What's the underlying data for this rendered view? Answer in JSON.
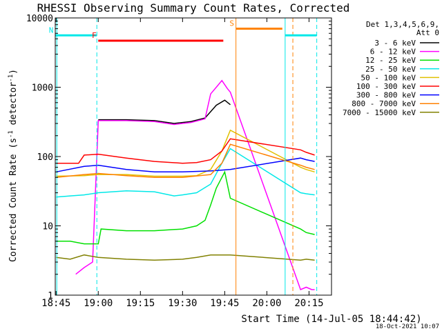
{
  "chart_data": {
    "type": "line",
    "title": "RHESSI Observing Summary Count Rates, Corrected",
    "xlabel": "Start Time (14-Jul-05 18:44:42)",
    "ylabel": "Corrected Count Rate (s⁻¹ detector⁻¹)",
    "ylabel_parts": {
      "main": "Corrected Count Rate (s",
      "sup1": "-1",
      "mid": " detector",
      "sup2": "-1",
      "end": ")"
    },
    "y_scale": "log",
    "xlim": [
      "18:44:42",
      "20:23:00"
    ],
    "ylim": [
      1,
      10000
    ],
    "x_tick_labels": [
      "18:45",
      "19:00",
      "19:15",
      "19:30",
      "19:45",
      "20:00",
      "20:15"
    ],
    "x_tick_values": [
      "18:45",
      "19:00",
      "19:15",
      "19:30",
      "19:45",
      "20:00",
      "20:15"
    ],
    "y_tick_labels": [
      "1",
      "10",
      "100",
      "1000",
      "10000"
    ],
    "y_tick_values": [
      1,
      10,
      100,
      1000,
      10000
    ],
    "legend_header": [
      "Det 1,3,4,5,6,9,",
      "Att 0"
    ],
    "legend_position": "top-right",
    "footer_date": "18-Oct-2021 10:07",
    "flags": [
      {
        "label": "N",
        "color": "#00e8e8",
        "segments": [
          [
            "18:44:42",
            "18:59:30"
          ],
          [
            "20:06:30",
            "20:17:45"
          ]
        ],
        "y": 5600
      },
      {
        "label": "F",
        "color": "#ff0000",
        "segments": [
          [
            "19:00:00",
            "19:44:30"
          ]
        ],
        "y": 4700
      },
      {
        "label": "S",
        "color": "#ff8000",
        "segments": [
          [
            "19:49:00",
            "20:05:30"
          ]
        ],
        "y": 7000
      }
    ],
    "vlines": [
      {
        "x": "18:45:15",
        "color": "#00e8e8",
        "dashed": false
      },
      {
        "x": "18:59:30",
        "color": "#00e8e8",
        "dashed": true
      },
      {
        "x": "19:49:00",
        "color": "#ff8000",
        "dashed": false
      },
      {
        "x": "20:06:30",
        "color": "#00e8e8",
        "dashed": false
      },
      {
        "x": "20:09:15",
        "color": "#ff8000",
        "dashed": true
      },
      {
        "x": "20:17:45",
        "color": "#00e8e8",
        "dashed": true
      }
    ],
    "series": [
      {
        "name": "3 - 6 keV",
        "color": "#000000",
        "x": [
          "19:00",
          "19:10",
          "19:20",
          "19:27",
          "19:30",
          "19:33",
          "19:38",
          "19:42",
          "19:45",
          "19:47"
        ],
        "y": [
          340,
          340,
          330,
          300,
          310,
          320,
          360,
          550,
          650,
          560
        ]
      },
      {
        "name": "6 - 12 keV",
        "color": "#ff00ff",
        "x": [
          "18:52",
          "18:55",
          "18:58",
          "19:00",
          "19:10",
          "19:20",
          "19:27",
          "19:30",
          "19:33",
          "19:38",
          "19:40",
          "19:42",
          "19:44",
          "19:46",
          "19:47",
          "20:12",
          "20:14",
          "20:16",
          "20:17"
        ],
        "y": [
          2,
          2.5,
          3,
          330,
          330,
          320,
          290,
          300,
          310,
          350,
          800,
          1000,
          1250,
          950,
          850,
          1.2,
          1.3,
          1.2,
          1.2
        ]
      },
      {
        "name": "12 - 25 keV",
        "color": "#00e000",
        "x": [
          "18:45",
          "18:50",
          "18:55",
          "19:00",
          "19:01",
          "19:10",
          "19:20",
          "19:30",
          "19:35",
          "19:38",
          "19:40",
          "19:42",
          "19:45",
          "19:47",
          "20:12",
          "20:14",
          "20:17"
        ],
        "y": [
          6,
          6,
          5.5,
          5.5,
          9,
          8.5,
          8.5,
          9,
          10,
          12,
          20,
          35,
          60,
          25,
          9,
          8,
          7.5
        ]
      },
      {
        "name": "25 - 50 keV",
        "color": "#00e8e8",
        "x": [
          "18:45",
          "18:50",
          "18:55",
          "19:00",
          "19:10",
          "19:20",
          "19:27",
          "19:30",
          "19:35",
          "19:40",
          "19:44",
          "19:47",
          "20:12",
          "20:14",
          "20:17"
        ],
        "y": [
          26,
          27,
          28,
          30,
          32,
          31,
          27,
          28,
          30,
          40,
          80,
          130,
          30,
          29,
          28
        ]
      },
      {
        "name": "50 - 100 keV",
        "color": "#e0c000",
        "x": [
          "18:45",
          "18:55",
          "19:00",
          "19:10",
          "19:20",
          "19:30",
          "19:35",
          "19:40",
          "19:44",
          "19:47",
          "20:12",
          "20:14",
          "20:17"
        ],
        "y": [
          52,
          53,
          55,
          55,
          52,
          52,
          53,
          65,
          120,
          240,
          70,
          65,
          60
        ]
      },
      {
        "name": "100 - 300 keV",
        "color": "#ff0000",
        "x": [
          "18:45",
          "18:53",
          "18:55",
          "19:00",
          "19:10",
          "19:20",
          "19:30",
          "19:35",
          "19:40",
          "19:44",
          "19:47",
          "20:12",
          "20:14",
          "20:17"
        ],
        "y": [
          80,
          80,
          105,
          108,
          95,
          85,
          80,
          82,
          90,
          120,
          180,
          125,
          115,
          105
        ]
      },
      {
        "name": "300 - 800 keV",
        "color": "#0000ff",
        "x": [
          "18:45",
          "18:55",
          "19:00",
          "19:10",
          "19:20",
          "19:30",
          "19:40",
          "19:47",
          "20:12",
          "20:14",
          "20:17"
        ],
        "y": [
          60,
          72,
          75,
          65,
          60,
          60,
          62,
          65,
          95,
          90,
          85
        ]
      },
      {
        "name": "800 - 7000 keV",
        "color": "#ff8000",
        "x": [
          "18:45",
          "18:55",
          "19:00",
          "19:10",
          "19:20",
          "19:30",
          "19:40",
          "19:44",
          "19:47",
          "20:12",
          "20:14",
          "20:17"
        ],
        "y": [
          50,
          55,
          57,
          53,
          50,
          50,
          55,
          80,
          150,
          75,
          70,
          65
        ]
      },
      {
        "name": "7000 - 15000 keV",
        "color": "#808000",
        "x": [
          "18:45",
          "18:50",
          "18:55",
          "19:00",
          "19:10",
          "19:20",
          "19:30",
          "19:35",
          "19:40",
          "19:47",
          "20:12",
          "20:14",
          "20:17"
        ],
        "y": [
          3.5,
          3.3,
          3.8,
          3.5,
          3.3,
          3.2,
          3.3,
          3.5,
          3.8,
          3.8,
          3.2,
          3.3,
          3.2
        ]
      }
    ]
  }
}
